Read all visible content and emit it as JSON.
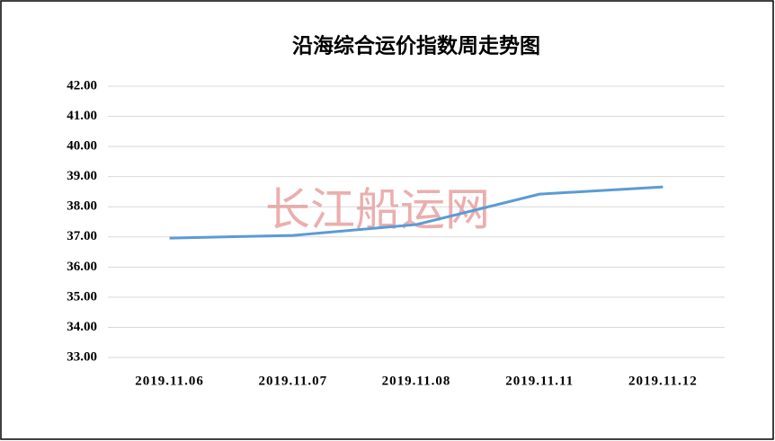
{
  "chart_data": {
    "type": "line",
    "title": "沿海综合运价指数周走势图",
    "watermark": "长江船运网",
    "categories": [
      "2019.11.06",
      "2019.11.07",
      "2019.11.08",
      "2019.11.11",
      "2019.11.12"
    ],
    "series": [
      {
        "name": "沿海综合运价指数",
        "color": "#5b9bd5",
        "values": [
          36.96,
          37.05,
          37.41,
          38.42,
          38.66
        ]
      }
    ],
    "ylim": [
      33,
      42
    ],
    "yticks": [
      {
        "value": 33,
        "label": "33.00"
      },
      {
        "value": 34,
        "label": "34.00"
      },
      {
        "value": 35,
        "label": "35.00"
      },
      {
        "value": 36,
        "label": "36.00"
      },
      {
        "value": 37,
        "label": "37.00"
      },
      {
        "value": 38,
        "label": "38.00"
      },
      {
        "value": 39,
        "label": "39.00"
      },
      {
        "value": 40,
        "label": "40.00"
      },
      {
        "value": 41,
        "label": "41.00"
      },
      {
        "value": 42,
        "label": "42.00"
      }
    ],
    "grid": true,
    "legend": false
  }
}
